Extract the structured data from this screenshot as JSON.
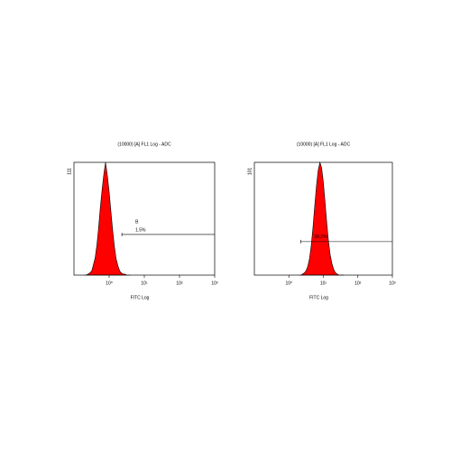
{
  "chart_data": [
    {
      "type": "area",
      "title": "(10000) [A] FL1 Log - ADC",
      "x_label": "FITC Log",
      "log_x": true,
      "color": "#ff0000",
      "x": [
        0.2,
        0.22,
        0.25,
        0.28,
        0.32,
        0.35,
        0.4,
        0.45,
        0.5,
        0.56,
        0.63,
        0.71,
        0.79,
        0.89,
        1.0,
        1.12,
        1.26,
        1.41,
        1.58,
        1.78,
        2.0,
        2.24,
        2.51,
        2.82,
        3.16,
        3.55,
        3.98
      ],
      "values": [
        0,
        0,
        1,
        2,
        4,
        9,
        17,
        30,
        46,
        66,
        84,
        100,
        111,
        98,
        82,
        63,
        44,
        28,
        16,
        9,
        4,
        2,
        1,
        1,
        0,
        0,
        0
      ],
      "xlim": [
        0.1,
        1000
      ],
      "xticks": [
        {
          "value": 1,
          "label": "10⁰"
        },
        {
          "value": 10,
          "label": "10¹"
        },
        {
          "value": 100,
          "label": "10²"
        },
        {
          "value": 1000,
          "label": "10³"
        }
      ],
      "ylim": [
        0,
        111
      ],
      "yticks": [
        111
      ],
      "gate": {
        "name": "B",
        "label": "1.5%",
        "x": [
          2.3,
          1000
        ],
        "y": 40
      }
    },
    {
      "type": "area",
      "title": "(10000) [A] FL1 Log - ADC",
      "x_label": "FITC Log",
      "log_x": true,
      "color": "#ff0000",
      "x": [
        2.0,
        2.24,
        2.51,
        2.82,
        3.16,
        3.55,
        3.98,
        4.47,
        5.01,
        5.62,
        6.31,
        7.08,
        7.94,
        8.91,
        10,
        11.2,
        12.6,
        14.1,
        15.8,
        17.8,
        20,
        22.4,
        25.1,
        28.2,
        31.6,
        35.5,
        39.8
      ],
      "values": [
        0,
        0,
        1,
        2,
        4,
        8,
        15,
        27,
        43,
        62,
        80,
        94,
        101,
        96,
        83,
        65,
        46,
        30,
        18,
        10,
        5,
        2,
        1,
        0,
        0,
        0,
        0
      ],
      "xlim": [
        0.1,
        1000
      ],
      "xticks": [
        {
          "value": 1,
          "label": "10⁰"
        },
        {
          "value": 10,
          "label": "10¹"
        },
        {
          "value": 100,
          "label": "10²"
        },
        {
          "value": 1000,
          "label": "10³"
        }
      ],
      "ylim": [
        0,
        101
      ],
      "yticks": [
        101
      ],
      "gate": {
        "label": "99.2%",
        "x": [
          2.2,
          1000
        ],
        "y": 30
      }
    }
  ]
}
